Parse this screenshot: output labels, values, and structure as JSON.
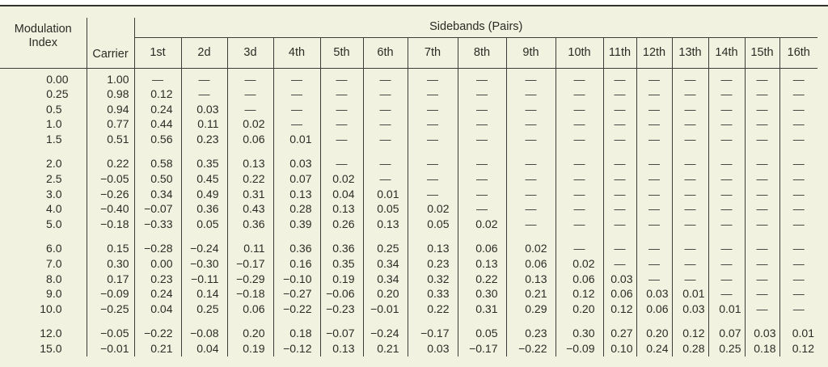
{
  "colors": {
    "paper_background": "#f1f2df",
    "page_margin": "#ffffff",
    "rule": "#33332f",
    "text": "#2b2b26"
  },
  "table": {
    "headers": {
      "modulation_index": "Modulation Index",
      "carrier": "Carrier",
      "sidebands_group": "Sidebands (Pairs)"
    },
    "sideband_columns": [
      "1st",
      "2d",
      "3d",
      "4th",
      "5th",
      "6th",
      "7th",
      "8th",
      "9th",
      "10th",
      "11th",
      "12th",
      "13th",
      "14th",
      "15th",
      "16th"
    ],
    "empty_marker": "—",
    "row_groups": [
      {
        "rows": [
          {
            "modulation_index": "0.00",
            "carrier": "1.00",
            "sidebands": [
              "—",
              "—",
              "—",
              "—",
              "—",
              "—",
              "—",
              "—",
              "—",
              "—",
              "—",
              "—",
              "—",
              "—",
              "—",
              "—"
            ]
          },
          {
            "modulation_index": "0.25",
            "carrier": "0.98",
            "sidebands": [
              "0.12",
              "—",
              "—",
              "—",
              "—",
              "—",
              "—",
              "—",
              "—",
              "—",
              "—",
              "—",
              "—",
              "—",
              "—",
              "—"
            ]
          },
          {
            "modulation_index": "0.5",
            "carrier": "0.94",
            "sidebands": [
              "0.24",
              "0.03",
              "—",
              "—",
              "—",
              "—",
              "—",
              "—",
              "—",
              "—",
              "—",
              "—",
              "—",
              "—",
              "—",
              "—"
            ]
          },
          {
            "modulation_index": "1.0",
            "carrier": "0.77",
            "sidebands": [
              "0.44",
              "0.11",
              "0.02",
              "—",
              "—",
              "—",
              "—",
              "—",
              "—",
              "—",
              "—",
              "—",
              "—",
              "—",
              "—",
              "—"
            ]
          },
          {
            "modulation_index": "1.5",
            "carrier": "0.51",
            "sidebands": [
              "0.56",
              "0.23",
              "0.06",
              "0.01",
              "—",
              "—",
              "—",
              "—",
              "—",
              "—",
              "—",
              "—",
              "—",
              "—",
              "—",
              "—"
            ]
          }
        ]
      },
      {
        "rows": [
          {
            "modulation_index": "2.0",
            "carrier": "0.22",
            "sidebands": [
              "0.58",
              "0.35",
              "0.13",
              "0.03",
              "—",
              "—",
              "—",
              "—",
              "—",
              "—",
              "—",
              "—",
              "—",
              "—",
              "—",
              "—"
            ]
          },
          {
            "modulation_index": "2.5",
            "carrier": "−0.05",
            "sidebands": [
              "0.50",
              "0.45",
              "0.22",
              "0.07",
              "0.02",
              "—",
              "—",
              "—",
              "—",
              "—",
              "—",
              "—",
              "—",
              "—",
              "—",
              "—"
            ]
          },
          {
            "modulation_index": "3.0",
            "carrier": "−0.26",
            "sidebands": [
              "0.34",
              "0.49",
              "0.31",
              "0.13",
              "0.04",
              "0.01",
              "—",
              "—",
              "—",
              "—",
              "—",
              "—",
              "—",
              "—",
              "—",
              "—"
            ]
          },
          {
            "modulation_index": "4.0",
            "carrier": "−0.40",
            "sidebands": [
              "−0.07",
              "0.36",
              "0.43",
              "0.28",
              "0.13",
              "0.05",
              "0.02",
              "—",
              "—",
              "—",
              "—",
              "—",
              "—",
              "—",
              "—",
              "—"
            ]
          },
          {
            "modulation_index": "5.0",
            "carrier": "−0.18",
            "sidebands": [
              "−0.33",
              "0.05",
              "0.36",
              "0.39",
              "0.26",
              "0.13",
              "0.05",
              "0.02",
              "—",
              "—",
              "—",
              "—",
              "—",
              "—",
              "—",
              "—"
            ]
          }
        ]
      },
      {
        "rows": [
          {
            "modulation_index": "6.0",
            "carrier": "0.15",
            "sidebands": [
              "−0.28",
              "−0.24",
              "0.11",
              "0.36",
              "0.36",
              "0.25",
              "0.13",
              "0.06",
              "0.02",
              "—",
              "—",
              "—",
              "—",
              "—",
              "—",
              "—"
            ]
          },
          {
            "modulation_index": "7.0",
            "carrier": "0.30",
            "sidebands": [
              "0.00",
              "−0.30",
              "−0.17",
              "0.16",
              "0.35",
              "0.34",
              "0.23",
              "0.13",
              "0.06",
              "0.02",
              "—",
              "—",
              "—",
              "—",
              "—",
              "—"
            ]
          },
          {
            "modulation_index": "8.0",
            "carrier": "0.17",
            "sidebands": [
              "0.23",
              "−0.11",
              "−0.29",
              "−0.10",
              "0.19",
              "0.34",
              "0.32",
              "0.22",
              "0.13",
              "0.06",
              "0.03",
              "—",
              "—",
              "—",
              "—",
              "—"
            ]
          },
          {
            "modulation_index": "9.0",
            "carrier": "−0.09",
            "sidebands": [
              "0.24",
              "0.14",
              "−0.18",
              "−0.27",
              "−0.06",
              "0.20",
              "0.33",
              "0.30",
              "0.21",
              "0.12",
              "0.06",
              "0.03",
              "0.01",
              "—",
              "—",
              "—"
            ]
          },
          {
            "modulation_index": "10.0",
            "carrier": "−0.25",
            "sidebands": [
              "0.04",
              "0.25",
              "0.06",
              "−0.22",
              "−0.23",
              "−0.01",
              "0.22",
              "0.31",
              "0.29",
              "0.20",
              "0.12",
              "0.06",
              "0.03",
              "0.01",
              "—",
              "—"
            ]
          }
        ]
      },
      {
        "rows": [
          {
            "modulation_index": "12.0",
            "carrier": "−0.05",
            "sidebands": [
              "−0.22",
              "−0.08",
              "0.20",
              "0.18",
              "−0.07",
              "−0.24",
              "−0.17",
              "0.05",
              "0.23",
              "0.30",
              "0.27",
              "0.20",
              "0.12",
              "0.07",
              "0.03",
              "0.01"
            ]
          },
          {
            "modulation_index": "15.0",
            "carrier": "−0.01",
            "sidebands": [
              "0.21",
              "0.04",
              "0.19",
              "−0.12",
              "0.13",
              "0.21",
              "0.03",
              "−0.17",
              "−0.22",
              "−0.09",
              "0.10",
              "0.24",
              "0.28",
              "0.25",
              "0.18",
              "0.12"
            ]
          }
        ]
      }
    ]
  }
}
